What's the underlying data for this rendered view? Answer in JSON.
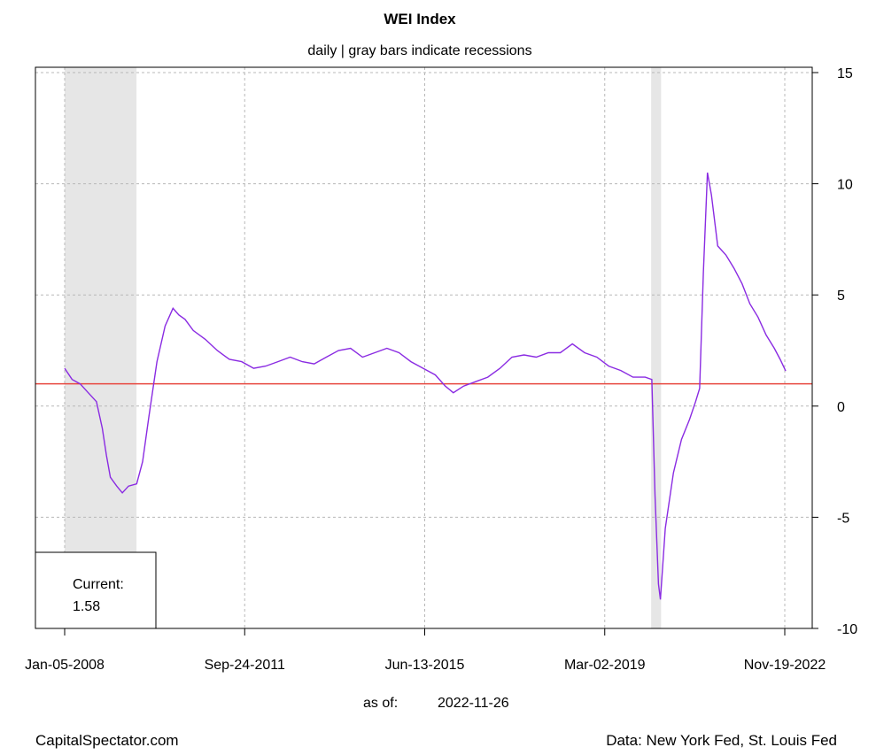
{
  "chart_data": {
    "type": "line",
    "title": "WEI Index",
    "subtitle": "daily | gray bars indicate recessions",
    "x_ticks": [
      "Jan-05-2008",
      "Sep-24-2011",
      "Jun-13-2015",
      "Mar-02-2019",
      "Nov-19-2022"
    ],
    "y_ticks": [
      "15",
      "10",
      "5",
      "0",
      "-5",
      "-10"
    ],
    "y_tick_values": [
      15,
      10,
      5,
      0,
      -5,
      -10
    ],
    "x_range": [
      "2007-09-01",
      "2023-09-01"
    ],
    "ylim": [
      -10,
      15
    ],
    "grid": true,
    "y_axis_side": "right",
    "reference_line": {
      "value": 1,
      "color": "#e8473f"
    },
    "recessions": [
      {
        "start": "2008-01-05",
        "end": "2009-06-30"
      },
      {
        "start": "2020-02-15",
        "end": "2020-04-30"
      }
    ],
    "series": [
      {
        "color": "#8a2be2",
        "points": [
          [
            "2008-01-05",
            1.7
          ],
          [
            "2008-03-01",
            1.2
          ],
          [
            "2008-05-01",
            1.0
          ],
          [
            "2008-07-01",
            0.6
          ],
          [
            "2008-09-01",
            0.2
          ],
          [
            "2008-10-15",
            -1.0
          ],
          [
            "2008-11-15",
            -2.2
          ],
          [
            "2008-12-15",
            -3.2
          ],
          [
            "2009-02-01",
            -3.6
          ],
          [
            "2009-03-15",
            -3.9
          ],
          [
            "2009-05-01",
            -3.6
          ],
          [
            "2009-07-01",
            -3.5
          ],
          [
            "2009-08-15",
            -2.5
          ],
          [
            "2009-10-01",
            -0.5
          ],
          [
            "2009-12-01",
            2.0
          ],
          [
            "2010-02-01",
            3.6
          ],
          [
            "2010-04-01",
            4.4
          ],
          [
            "2010-05-15",
            4.1
          ],
          [
            "2010-07-01",
            3.9
          ],
          [
            "2010-09-01",
            3.4
          ],
          [
            "2010-12-01",
            3.0
          ],
          [
            "2011-03-01",
            2.5
          ],
          [
            "2011-06-01",
            2.1
          ],
          [
            "2011-09-01",
            2.0
          ],
          [
            "2011-12-01",
            1.7
          ],
          [
            "2012-03-01",
            1.8
          ],
          [
            "2012-06-01",
            2.0
          ],
          [
            "2012-09-01",
            2.2
          ],
          [
            "2012-12-01",
            2.0
          ],
          [
            "2013-03-01",
            1.9
          ],
          [
            "2013-06-01",
            2.2
          ],
          [
            "2013-09-01",
            2.5
          ],
          [
            "2013-12-01",
            2.6
          ],
          [
            "2014-03-01",
            2.2
          ],
          [
            "2014-06-01",
            2.4
          ],
          [
            "2014-09-01",
            2.6
          ],
          [
            "2014-12-01",
            2.4
          ],
          [
            "2015-03-01",
            2.0
          ],
          [
            "2015-06-01",
            1.7
          ],
          [
            "2015-09-01",
            1.4
          ],
          [
            "2015-11-15",
            0.9
          ],
          [
            "2016-01-15",
            0.6
          ],
          [
            "2016-04-01",
            0.9
          ],
          [
            "2016-07-01",
            1.1
          ],
          [
            "2016-10-01",
            1.3
          ],
          [
            "2017-01-01",
            1.7
          ],
          [
            "2017-04-01",
            2.2
          ],
          [
            "2017-07-01",
            2.3
          ],
          [
            "2017-10-01",
            2.2
          ],
          [
            "2018-01-01",
            2.4
          ],
          [
            "2018-04-01",
            2.4
          ],
          [
            "2018-07-01",
            2.8
          ],
          [
            "2018-10-01",
            2.4
          ],
          [
            "2019-01-01",
            2.2
          ],
          [
            "2019-04-01",
            1.8
          ],
          [
            "2019-07-01",
            1.6
          ],
          [
            "2019-10-01",
            1.3
          ],
          [
            "2020-01-01",
            1.3
          ],
          [
            "2020-02-20",
            1.2
          ],
          [
            "2020-03-15",
            -4.0
          ],
          [
            "2020-04-10",
            -8.0
          ],
          [
            "2020-04-25",
            -8.7
          ],
          [
            "2020-06-01",
            -5.5
          ],
          [
            "2020-08-01",
            -3.0
          ],
          [
            "2020-10-01",
            -1.5
          ],
          [
            "2020-12-01",
            -0.6
          ],
          [
            "2021-01-15",
            0.2
          ],
          [
            "2021-02-15",
            0.8
          ],
          [
            "2021-03-15",
            6.0
          ],
          [
            "2021-04-15",
            10.5
          ],
          [
            "2021-05-15",
            9.5
          ],
          [
            "2021-07-01",
            7.2
          ],
          [
            "2021-09-01",
            6.8
          ],
          [
            "2021-11-01",
            6.2
          ],
          [
            "2022-01-01",
            5.5
          ],
          [
            "2022-03-01",
            4.6
          ],
          [
            "2022-05-01",
            4.0
          ],
          [
            "2022-07-01",
            3.2
          ],
          [
            "2022-09-01",
            2.6
          ],
          [
            "2022-10-15",
            2.1
          ],
          [
            "2022-11-26",
            1.58
          ]
        ]
      }
    ],
    "annotation": {
      "label": "Current:",
      "value": "1.58"
    },
    "as_of_label": "as of:",
    "as_of_date": "2022-11-26",
    "footer_left": "CapitalSpectator.com",
    "footer_right": "Data: New York Fed, St. Louis Fed"
  }
}
